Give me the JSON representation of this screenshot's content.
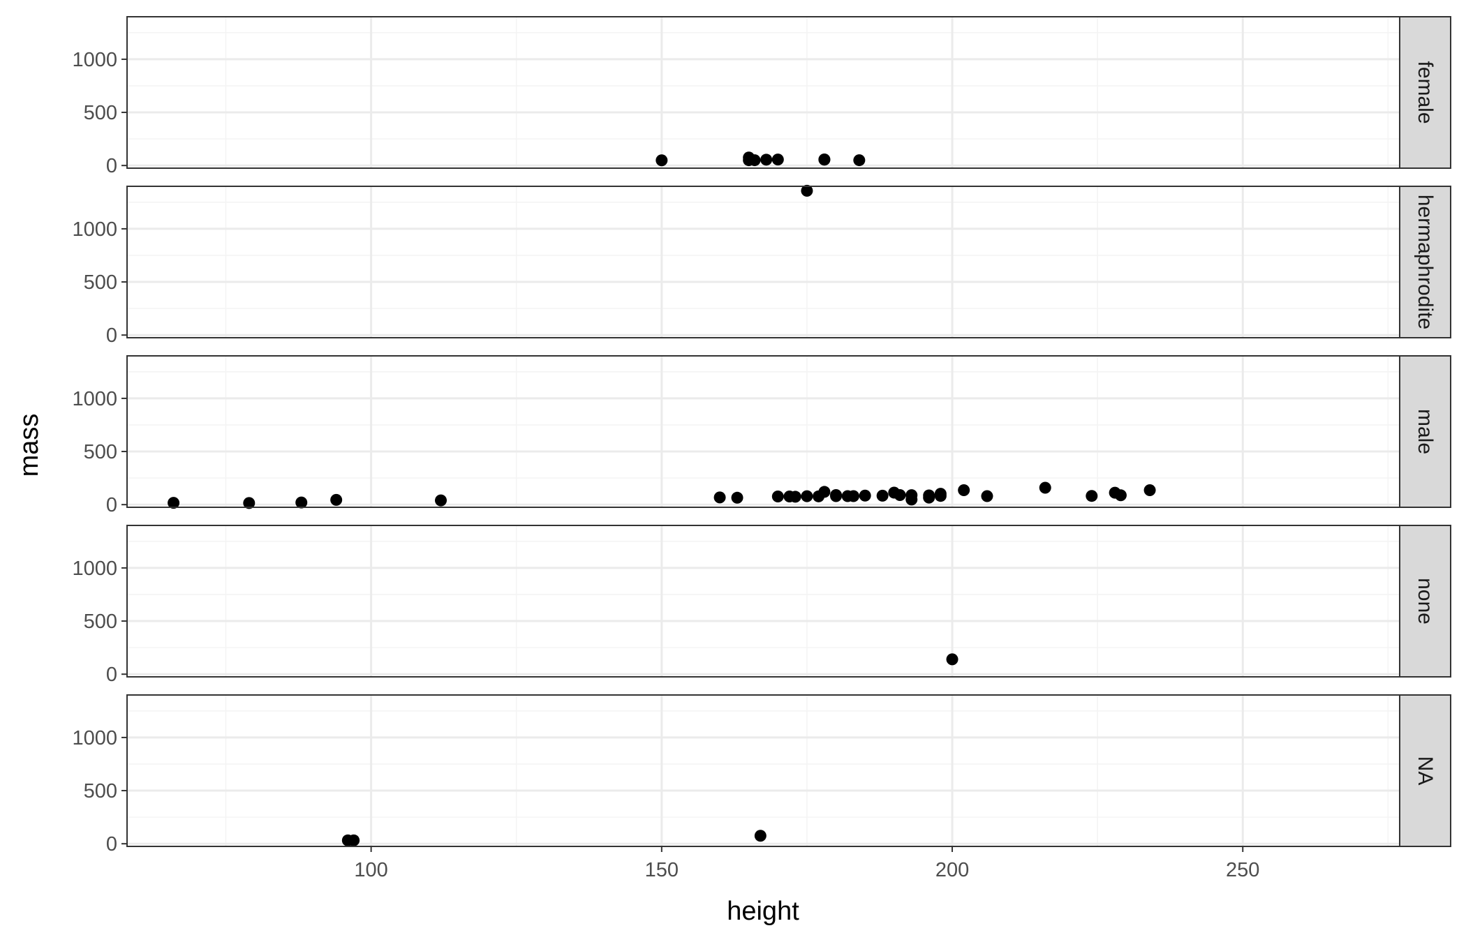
{
  "chart_data": {
    "type": "scatter",
    "xlabel": "height",
    "ylabel": "mass",
    "xlim": [
      58,
      277
    ],
    "ylim": [
      -25,
      1400
    ],
    "x_ticks": [
      100,
      150,
      200,
      250
    ],
    "y_ticks": [
      0,
      500,
      1000
    ],
    "grid": true,
    "point_color": "#000000",
    "panel_border_color": "#333333",
    "strip_fill": "#d9d9d9",
    "grid_major_color": "#ebebeb",
    "grid_minor_color": "#f4f4f4",
    "facets": [
      {
        "label": "female",
        "points": [
          {
            "x": 150,
            "y": 49
          },
          {
            "x": 165,
            "y": 50
          },
          {
            "x": 165,
            "y": 75
          },
          {
            "x": 166,
            "y": 50
          },
          {
            "x": 168,
            "y": 55
          },
          {
            "x": 170,
            "y": 56.2
          },
          {
            "x": 178,
            "y": 55
          },
          {
            "x": 178,
            "y": 57
          },
          {
            "x": 184,
            "y": 50
          }
        ]
      },
      {
        "label": "hermaphrodite",
        "points": [
          {
            "x": 175,
            "y": 1358
          }
        ]
      },
      {
        "label": "male",
        "points": [
          {
            "x": 66,
            "y": 17
          },
          {
            "x": 79,
            "y": 15
          },
          {
            "x": 88,
            "y": 20
          },
          {
            "x": 94,
            "y": 45
          },
          {
            "x": 112,
            "y": 40
          },
          {
            "x": 160,
            "y": 68
          },
          {
            "x": 163,
            "y": 65
          },
          {
            "x": 170,
            "y": 77
          },
          {
            "x": 172,
            "y": 77
          },
          {
            "x": 173,
            "y": 74
          },
          {
            "x": 175,
            "y": 79
          },
          {
            "x": 177,
            "y": 78
          },
          {
            "x": 178,
            "y": 120
          },
          {
            "x": 180,
            "y": 90
          },
          {
            "x": 180,
            "y": 80
          },
          {
            "x": 182,
            "y": 80
          },
          {
            "x": 183,
            "y": 80
          },
          {
            "x": 185,
            "y": 85
          },
          {
            "x": 188,
            "y": 84
          },
          {
            "x": 190,
            "y": 113
          },
          {
            "x": 191,
            "y": 90
          },
          {
            "x": 193,
            "y": 89
          },
          {
            "x": 193,
            "y": 48
          },
          {
            "x": 196,
            "y": 66
          },
          {
            "x": 196,
            "y": 87
          },
          {
            "x": 198,
            "y": 102
          },
          {
            "x": 198,
            "y": 82
          },
          {
            "x": 202,
            "y": 136
          },
          {
            "x": 206,
            "y": 80
          },
          {
            "x": 216,
            "y": 159
          },
          {
            "x": 224,
            "y": 82
          },
          {
            "x": 228,
            "y": 112
          },
          {
            "x": 229,
            "y": 88
          },
          {
            "x": 234,
            "y": 136
          }
        ]
      },
      {
        "label": "none",
        "points": [
          {
            "x": 200,
            "y": 140
          }
        ]
      },
      {
        "label": "NA",
        "points": [
          {
            "x": 96,
            "y": 32
          },
          {
            "x": 97,
            "y": 32
          },
          {
            "x": 167,
            "y": 75
          }
        ]
      }
    ]
  }
}
